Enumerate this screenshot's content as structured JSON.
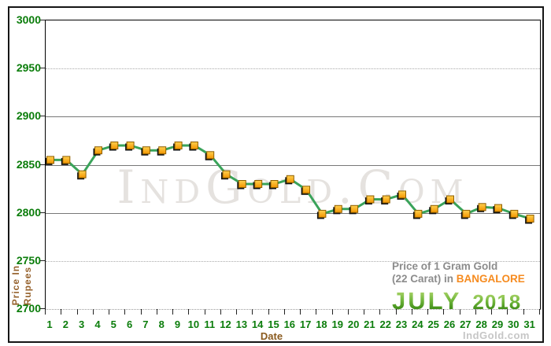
{
  "chart_data": {
    "type": "line",
    "title": "Price of 1 Gram Gold (22 Carat) in Bangalore - July 2018",
    "x": [
      1,
      2,
      3,
      4,
      5,
      6,
      7,
      8,
      9,
      10,
      11,
      12,
      13,
      14,
      15,
      16,
      17,
      18,
      19,
      20,
      21,
      22,
      23,
      24,
      25,
      26,
      27,
      28,
      29,
      30,
      31
    ],
    "values": [
      2855,
      2855,
      2840,
      2865,
      2870,
      2870,
      2865,
      2865,
      2870,
      2870,
      2860,
      2840,
      2830,
      2830,
      2830,
      2835,
      2824,
      2799,
      2804,
      2804,
      2814,
      2814,
      2819,
      2799,
      2804,
      2814,
      2799,
      2806,
      2805,
      2799,
      2794
    ],
    "xlabel": "Date",
    "ylabel": "Price In Rupees",
    "ylim": [
      2700,
      3000
    ],
    "yticks": [
      3000,
      2950,
      2900,
      2850,
      2800,
      2750,
      2700
    ],
    "solid_gridlines": [
      2900,
      2850,
      2800
    ],
    "grid": "horizontal",
    "legend_position": "none",
    "line_color": "#3aa35a",
    "marker_color": "#f9a01b",
    "tick_label_color": "#0b7d0b"
  },
  "axis": {
    "x_title": "Date",
    "y_title_line1": "Price In",
    "y_title_line2": "Rupees"
  },
  "caption": {
    "line1": "Price of 1 Gram Gold",
    "line2_prefix": "(22 Carat) in ",
    "line2_highlight": "BANGALORE",
    "month": "JULY",
    "year": "2018"
  },
  "watermark": "IndGold.Com",
  "footer_brand": "IndGold.com"
}
